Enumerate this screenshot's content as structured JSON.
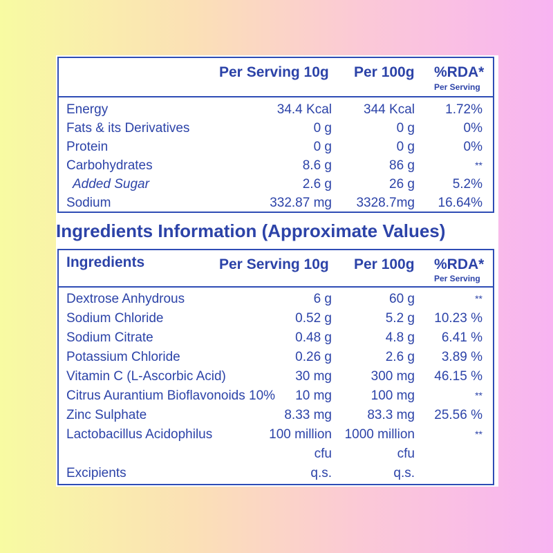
{
  "nutrition": {
    "headers": {
      "per_serving": "Per Serving 10g",
      "per_100g": "Per 100g",
      "rda": "%RDA*",
      "rda_sub": "Per Serving"
    },
    "rows": [
      {
        "name": "Energy",
        "serving": "34.4 Kcal",
        "per100": "344 Kcal",
        "rda": "1.72%"
      },
      {
        "name": "Fats & its Derivatives",
        "serving": "0 g",
        "per100": "0 g",
        "rda": "0%"
      },
      {
        "name": "Protein",
        "serving": "0 g",
        "per100": "0 g",
        "rda": "0%"
      },
      {
        "name": "Carbohydrates",
        "serving": "8.6 g",
        "per100": "86 g",
        "rda": "**"
      },
      {
        "name": "Added Sugar",
        "serving": "2.6 g",
        "per100": "26 g",
        "rda": "5.2%"
      },
      {
        "name": "Sodium",
        "serving": "332.87 mg",
        "per100": "3328.7mg",
        "rda": "16.64%"
      }
    ]
  },
  "ingredients_title": "Ingredients Information (Approximate Values)",
  "ingredients": {
    "headers": {
      "name": "Ingredients",
      "per_serving": "Per Serving 10g",
      "per_100g": "Per 100g",
      "rda": "%RDA*",
      "rda_sub": "Per Serving"
    },
    "rows": [
      {
        "name": "Dextrose Anhydrous",
        "serving": "6 g",
        "per100": "60 g",
        "rda": "**"
      },
      {
        "name": "Sodium Chloride",
        "serving": "0.52 g",
        "per100": "5.2 g",
        "rda": "10.23 %"
      },
      {
        "name": "Sodium Citrate",
        "serving": "0.48 g",
        "per100": "4.8 g",
        "rda": "6.41 %"
      },
      {
        "name": "Potassium Chloride",
        "serving": "0.26 g",
        "per100": "2.6 g",
        "rda": "3.89 %"
      },
      {
        "name": "Vitamin C (L-Ascorbic Acid)",
        "serving": "30 mg",
        "per100": "300 mg",
        "rda": "46.15 %"
      },
      {
        "name": "Citrus Aurantium Bioflavonoids 10%",
        "serving": "10 mg",
        "per100": "100 mg",
        "rda": "**"
      },
      {
        "name": "Zinc Sulphate",
        "serving": "8.33 mg",
        "per100": "83.3 mg",
        "rda": "25.56 %"
      },
      {
        "name": "Lactobacillus Acidophilus",
        "serving": "100 million",
        "per100": "1000 million",
        "rda": "**"
      },
      {
        "name": "",
        "serving": "cfu",
        "per100": "cfu",
        "rda": ""
      },
      {
        "name": "Excipients",
        "serving": "q.s.",
        "per100": "q.s.",
        "rda": ""
      }
    ]
  }
}
